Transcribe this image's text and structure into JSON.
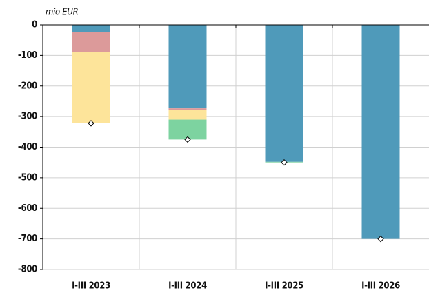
{
  "chart_data": {
    "type": "stacked_bar",
    "y_label": "mio EUR",
    "categories": [
      "I-III 2023",
      "I-III 2024",
      "I-III 2025",
      "I-III 2026"
    ],
    "series": [
      {
        "color": "#4f9aba",
        "values": [
          -23,
          -273,
          -448,
          -700
        ]
      },
      {
        "color": "#dc9a9a",
        "values": [
          -67,
          -5,
          0,
          0
        ]
      },
      {
        "color": "#fde49a",
        "values": [
          -232,
          -32,
          0,
          0
        ]
      },
      {
        "color": "#7dd3a0",
        "values": [
          0,
          -65,
          -2,
          0
        ]
      }
    ],
    "totals": {
      "values": [
        -322,
        -375,
        -450,
        -700
      ]
    },
    "ylim": [
      -800,
      0
    ],
    "yticks": [
      0,
      -100,
      -200,
      -300,
      -400,
      -500,
      -600,
      -700,
      -800
    ],
    "grid": true
  }
}
